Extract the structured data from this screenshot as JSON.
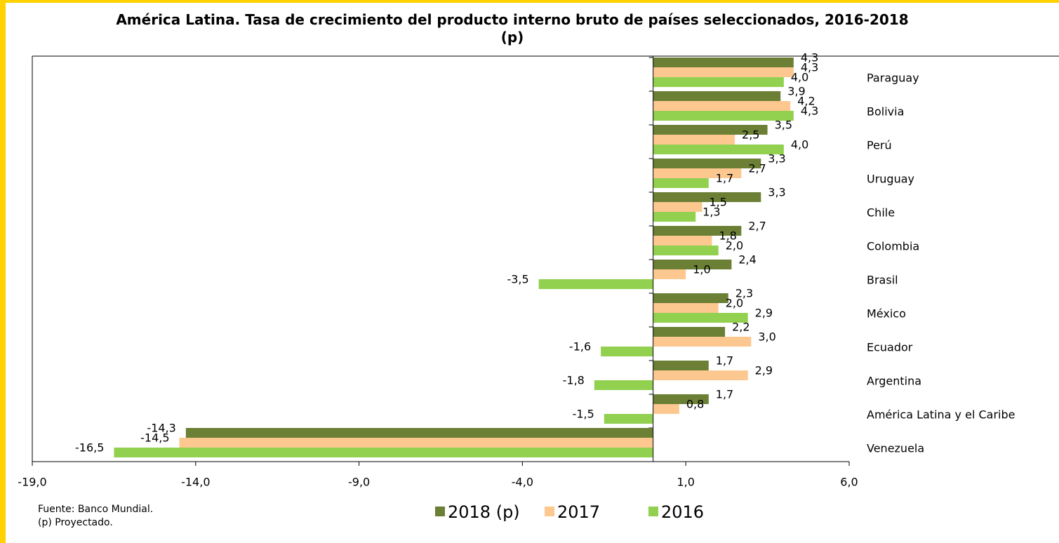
{
  "chart_data": {
    "type": "hbar",
    "title": "América Latina. Tasa de crecimiento del producto interno bruto de países seleccionados, 2016-2018 (p)",
    "categories": [
      "Paraguay",
      "Bolivia",
      "Perú",
      "Uruguay",
      "Chile",
      "Colombia",
      "Brasil",
      "México",
      "Ecuador",
      "Argentina",
      "América Latina y el Caribe",
      "Venezuela"
    ],
    "series": [
      {
        "name": "2018 (p)",
        "color": "#6b7f35",
        "values": [
          4.3,
          3.9,
          3.5,
          3.3,
          3.3,
          2.7,
          2.4,
          2.3,
          2.2,
          1.7,
          1.7,
          -14.3
        ],
        "value_labels": [
          "4,3",
          "3,9",
          "3,5",
          "3,3",
          "3,3",
          "2,7",
          "2,4",
          "2,3",
          "2,2",
          "1,7",
          "1,7",
          "-14,3"
        ]
      },
      {
        "name": "2017",
        "color": "#fcc890",
        "values": [
          4.3,
          4.2,
          2.5,
          2.7,
          1.5,
          1.8,
          1.0,
          2.0,
          3.0,
          2.9,
          0.8,
          -14.5
        ],
        "value_labels": [
          "4,3",
          "4,2",
          "2,5",
          "2,7",
          "1,5",
          "1,8",
          "1,0",
          "2,0",
          "3,0",
          "2,9",
          "0,8",
          "-14,5"
        ]
      },
      {
        "name": "2016",
        "color": "#92d050",
        "values": [
          4.0,
          4.3,
          4.0,
          1.7,
          1.3,
          2.0,
          -3.5,
          2.9,
          -1.6,
          -1.8,
          -1.5,
          -16.5
        ],
        "value_labels": [
          "4,0",
          "4,3",
          "4,0",
          "1,7",
          "1,3",
          "2,0",
          "-3,5",
          "2,9",
          "-1,6",
          "-1,8",
          "-1,5",
          "-16,5"
        ]
      }
    ],
    "xlim": [
      -19,
      6
    ],
    "xticks": [
      {
        "value": -19,
        "label": "-19,0"
      },
      {
        "value": -14,
        "label": "-14,0"
      },
      {
        "value": -9,
        "label": "-9,0"
      },
      {
        "value": -4,
        "label": "-4,0"
      },
      {
        "value": 1,
        "label": "1,0"
      },
      {
        "value": 6,
        "label": "6,0"
      }
    ],
    "legend": "bottom",
    "notes": [
      "Fuente: Banco Mundial.",
      "(p) Proyectado."
    ]
  }
}
